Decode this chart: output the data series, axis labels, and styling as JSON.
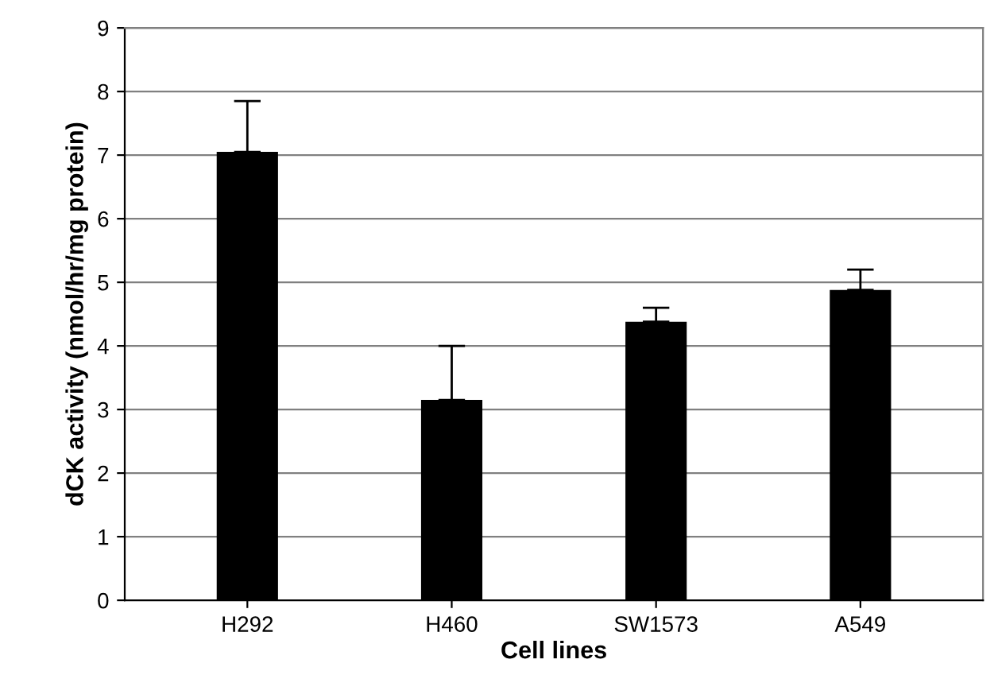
{
  "chart_data": {
    "type": "bar",
    "xlabel": "Cell lines",
    "ylabel": "dCK activity (nmol/hr/mg protein)",
    "categories": [
      "H292",
      "H460",
      "SW1573",
      "A549"
    ],
    "values": [
      7.05,
      3.15,
      4.38,
      4.88
    ],
    "errors": [
      [
        7.05,
        7.85
      ],
      [
        3.15,
        4.0
      ],
      [
        4.38,
        4.6
      ],
      [
        4.88,
        5.2
      ]
    ],
    "color": "#000000",
    "ylim": [
      0,
      9
    ],
    "yticks": [
      0,
      1,
      2,
      3,
      4,
      5,
      6,
      7,
      8,
      9
    ],
    "grid": "y",
    "legend": false
  }
}
